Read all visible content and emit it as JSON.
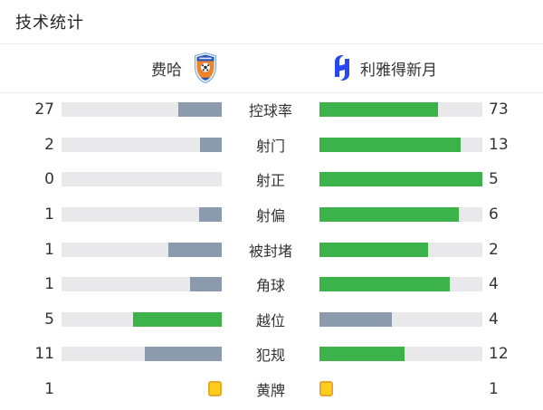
{
  "title": "技术统计",
  "teams": {
    "home": {
      "name": "费哈"
    },
    "away": {
      "name": "利雅得新月"
    }
  },
  "icons": {
    "home_crest": "fayha-shield-crest",
    "away_crest": "alhilal-blue-h-crescent",
    "card": "yellow-card"
  },
  "colors": {
    "green": "#3BB24A",
    "slate": "#8C9AAE",
    "track": "#E9E9EB",
    "card_fill": "#FFCE1C",
    "card_border": "#E5A72E",
    "hilal_blue": "#2847F0",
    "divider": "#ECECEC",
    "text": "#333333"
  },
  "stats": [
    {
      "label": "控球率",
      "home": 27,
      "away": 73,
      "type": "bar"
    },
    {
      "label": "射门",
      "home": 2,
      "away": 13,
      "type": "bar"
    },
    {
      "label": "射正",
      "home": 0,
      "away": 5,
      "type": "bar"
    },
    {
      "label": "射偏",
      "home": 1,
      "away": 6,
      "type": "bar"
    },
    {
      "label": "被封堵",
      "home": 1,
      "away": 2,
      "type": "bar"
    },
    {
      "label": "角球",
      "home": 1,
      "away": 4,
      "type": "bar"
    },
    {
      "label": "越位",
      "home": 5,
      "away": 4,
      "type": "bar"
    },
    {
      "label": "犯规",
      "home": 11,
      "away": 12,
      "type": "bar"
    },
    {
      "label": "黄牌",
      "home": 1,
      "away": 1,
      "type": "cards"
    }
  ],
  "chart_data": {
    "type": "bar",
    "orientation": "horizontal-paired",
    "title": "技术统计",
    "categories": [
      "控球率",
      "射门",
      "射正",
      "射偏",
      "被封堵",
      "角球",
      "越位",
      "犯规",
      "黄牌"
    ],
    "series": [
      {
        "name": "费哈",
        "values": [
          27,
          2,
          0,
          1,
          1,
          1,
          5,
          11,
          1
        ]
      },
      {
        "name": "利雅得新月",
        "values": [
          73,
          13,
          5,
          6,
          2,
          4,
          4,
          12,
          1
        ]
      }
    ],
    "notes": "Each bar filled proportionally to value/(home+away); larger side green, smaller side slate; yellow-card row shown as card icons"
  }
}
